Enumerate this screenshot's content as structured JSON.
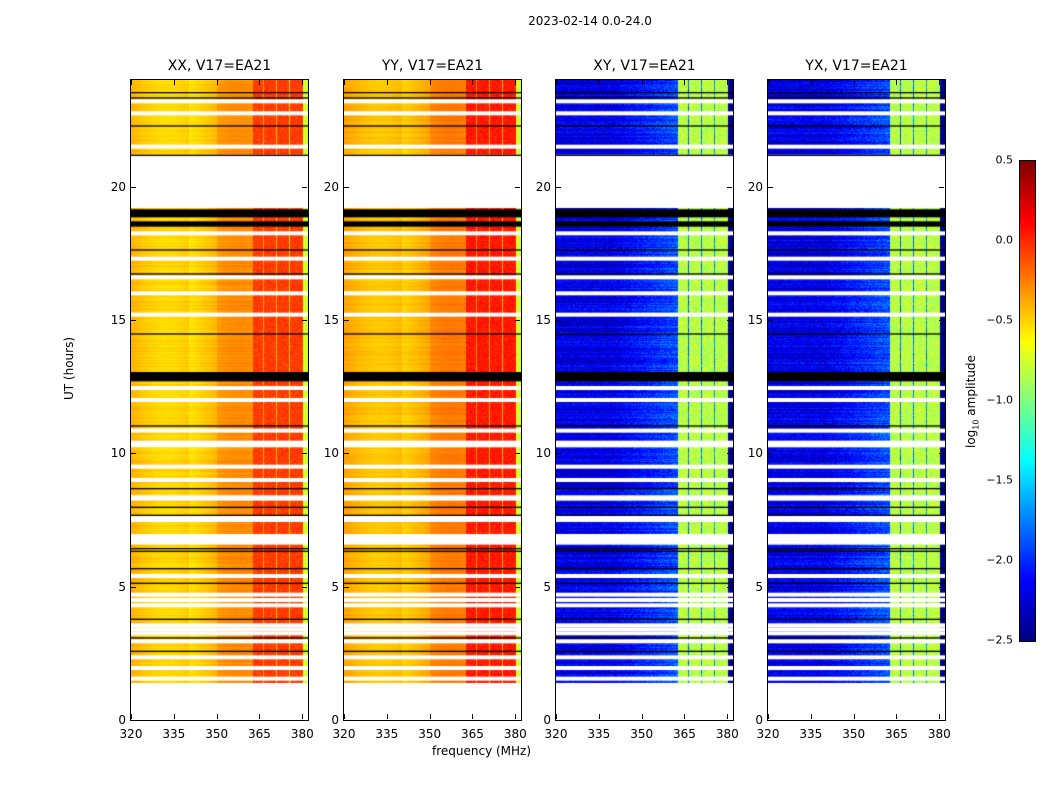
{
  "chart_data": {
    "type": "heatmap",
    "title": "2023-02-14 0.0-24.0",
    "xlabel": "frequency (MHz)",
    "ylabel": "UT (hours)",
    "xlim": [
      320,
      382
    ],
    "ylim": [
      0,
      24
    ],
    "xticks": [
      "320",
      "335",
      "350",
      "365",
      "380"
    ],
    "xtick_values": [
      320,
      335,
      350,
      365,
      380
    ],
    "yticks": [
      "0",
      "5",
      "10",
      "15",
      "20"
    ],
    "ytick_values": [
      0,
      5,
      10,
      15,
      20
    ],
    "colormap": "jet",
    "colorbar": {
      "label_prefix": "log",
      "label_sub": "10",
      "label_suffix": " amplitude",
      "range": [
        -2.5,
        0.5
      ],
      "ticks": [
        "0.5",
        "0.0",
        "−0.5",
        "−1.0",
        "−1.5",
        "−2.0",
        "−2.5"
      ],
      "tick_values": [
        0.5,
        0.0,
        -0.5,
        -1.0,
        -1.5,
        -2.0,
        -2.5
      ]
    },
    "data_time_range": [
      1.4,
      24.0
    ],
    "flagged_gap_hours": [
      19.2,
      21.2
    ],
    "black_bands_hours": [
      [
        18.5,
        18.7
      ],
      [
        18.85,
        19.15
      ],
      [
        12.7,
        13.05
      ]
    ],
    "white_rows_hours": [
      23.2,
      22.75,
      21.5,
      18.25,
      17.3,
      16.6,
      16.0,
      15.2,
      12.45,
      12.0,
      10.85,
      10.4,
      10.3,
      9.5,
      9.0,
      8.35,
      8.3,
      7.6,
      7.5,
      6.9,
      6.75,
      6.65,
      5.4,
      4.7,
      4.5,
      4.3,
      3.55,
      3.4,
      3.25,
      2.95,
      2.35,
      1.95,
      1.55
    ],
    "black_lines_hours": [
      23.55,
      23.35,
      22.3,
      17.65,
      16.75,
      14.5,
      11.05,
      8.7,
      8.0,
      7.7,
      6.45,
      6.35,
      5.7,
      5.15,
      3.8,
      3.1,
      2.6
    ],
    "panels": [
      {
        "title": "XX, V17=EA21",
        "pol": "XX",
        "base_level": -0.4,
        "rfi_level": -0.05
      },
      {
        "title": "YY, V17=EA21",
        "pol": "YY",
        "base_level": -0.35,
        "rfi_level": 0.05
      },
      {
        "title": "XY, V17=EA21",
        "pol": "XY",
        "base_level": -2.2,
        "rfi_level": -0.9
      },
      {
        "title": "YX, V17=EA21",
        "pol": "YX",
        "base_level": -2.2,
        "rfi_level": -0.9
      }
    ],
    "rfi_channels_mhz": [
      [
        362.5,
        366
      ],
      [
        366.5,
        370.5
      ],
      [
        371,
        375
      ],
      [
        375.5,
        380
      ]
    ]
  }
}
